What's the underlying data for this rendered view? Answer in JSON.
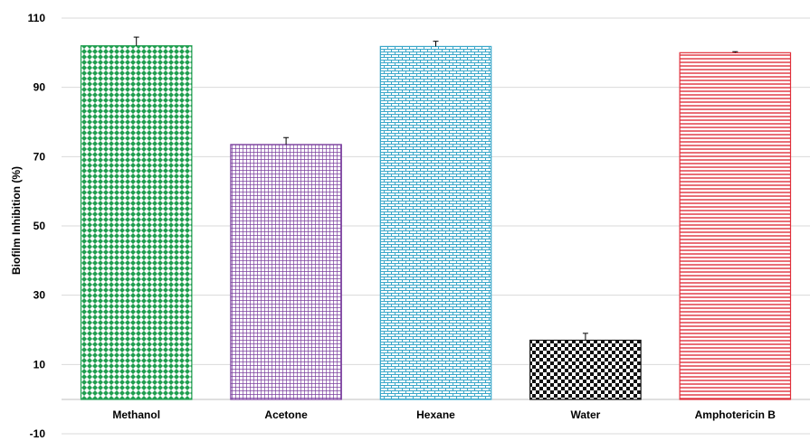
{
  "chart_data": {
    "type": "bar",
    "title": "",
    "xlabel": "",
    "ylabel": "Biofilm Inhibition (%)",
    "ylim": [
      -10,
      110
    ],
    "yticks": [
      -10,
      10,
      30,
      50,
      70,
      90,
      110
    ],
    "grid": true,
    "categories": [
      "Methanol",
      "Acetone",
      "Hexane",
      "Water",
      "Amphotericin B"
    ],
    "values": [
      102,
      73.5,
      101.8,
      17,
      100
    ],
    "errors": [
      2.5,
      2,
      1.5,
      2,
      0.3
    ],
    "colors": [
      "#1f9e4f",
      "#7b3f9e",
      "#3aa7c9",
      "#111111",
      "#e0313c"
    ],
    "patterns": [
      "diamond",
      "grid",
      "brick",
      "checker",
      "horizontal-lines"
    ]
  }
}
